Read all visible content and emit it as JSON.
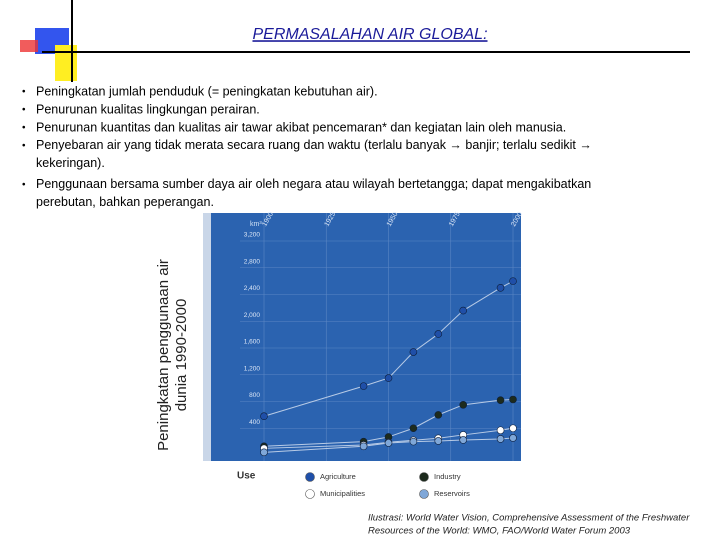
{
  "header": {
    "title": "PERMASALAHAN AIR GLOBAL:"
  },
  "bullets": [
    "Peningkatan jumlah penduduk (= peningkatan kebutuhan air).",
    "Penurunan kualitas lingkungan perairan.",
    "Penurunan kuantitas dan kualitas air tawar akibat pencemaran* dan kegiatan lain oleh manusia.",
    "Penyebaran air yang tidak merata secara ruang dan waktu (terlalu banyak → banjir; terlalu sedikit → kekeringan).",
    "Penggunaan bersama sumber daya air oleh negara atau wilayah bertetangga; dapat mengakibatkan perebutan, bahkan peperangan."
  ],
  "side_label": [
    "Peningkatan penggunaan air",
    "dunia 1990-2000"
  ],
  "chart_data": {
    "type": "line",
    "unit": "km³",
    "legend_title": "Use",
    "x": [
      1900,
      1940,
      1950,
      1960,
      1970,
      1980,
      1995,
      2000
    ],
    "xlim": [
      1900,
      2000
    ],
    "xticks": [
      1900,
      1925,
      1950,
      1975,
      2000
    ],
    "ylim": [
      0,
      3200
    ],
    "yticks": [
      {
        "value": 400,
        "label": "400"
      },
      {
        "value": 800,
        "label": "800"
      },
      {
        "value": 1200,
        "label": "1,200"
      },
      {
        "value": 1600,
        "label": "1,600"
      },
      {
        "value": 2000,
        "label": "2,000"
      },
      {
        "value": 2400,
        "label": "2,400"
      },
      {
        "value": 2800,
        "label": "2,800"
      },
      {
        "value": 3200,
        "label": "3,200"
      }
    ],
    "series": [
      {
        "name": "Agriculture",
        "color": "#1f4fa8",
        "values": [
          580,
          1030,
          1150,
          1540,
          1810,
          2160,
          2500,
          2600
        ]
      },
      {
        "name": "Industry",
        "color": "#1d2b1d",
        "values": [
          130,
          200,
          270,
          400,
          600,
          750,
          820,
          830
        ]
      },
      {
        "name": "Municipalities",
        "color": "#ffffff",
        "values": [
          100,
          150,
          190,
          220,
          250,
          300,
          370,
          400
        ]
      },
      {
        "name": "Reservoirs",
        "color": "#7fa7d8",
        "values": [
          40,
          130,
          180,
          200,
          210,
          225,
          240,
          255
        ]
      }
    ]
  },
  "caption": [
    "Ilustrasi: World Water Vision, Comprehensive Assessment of the Freshwater",
    "Resources of the World: WMO, FAO/World Water Forum 2003"
  ]
}
